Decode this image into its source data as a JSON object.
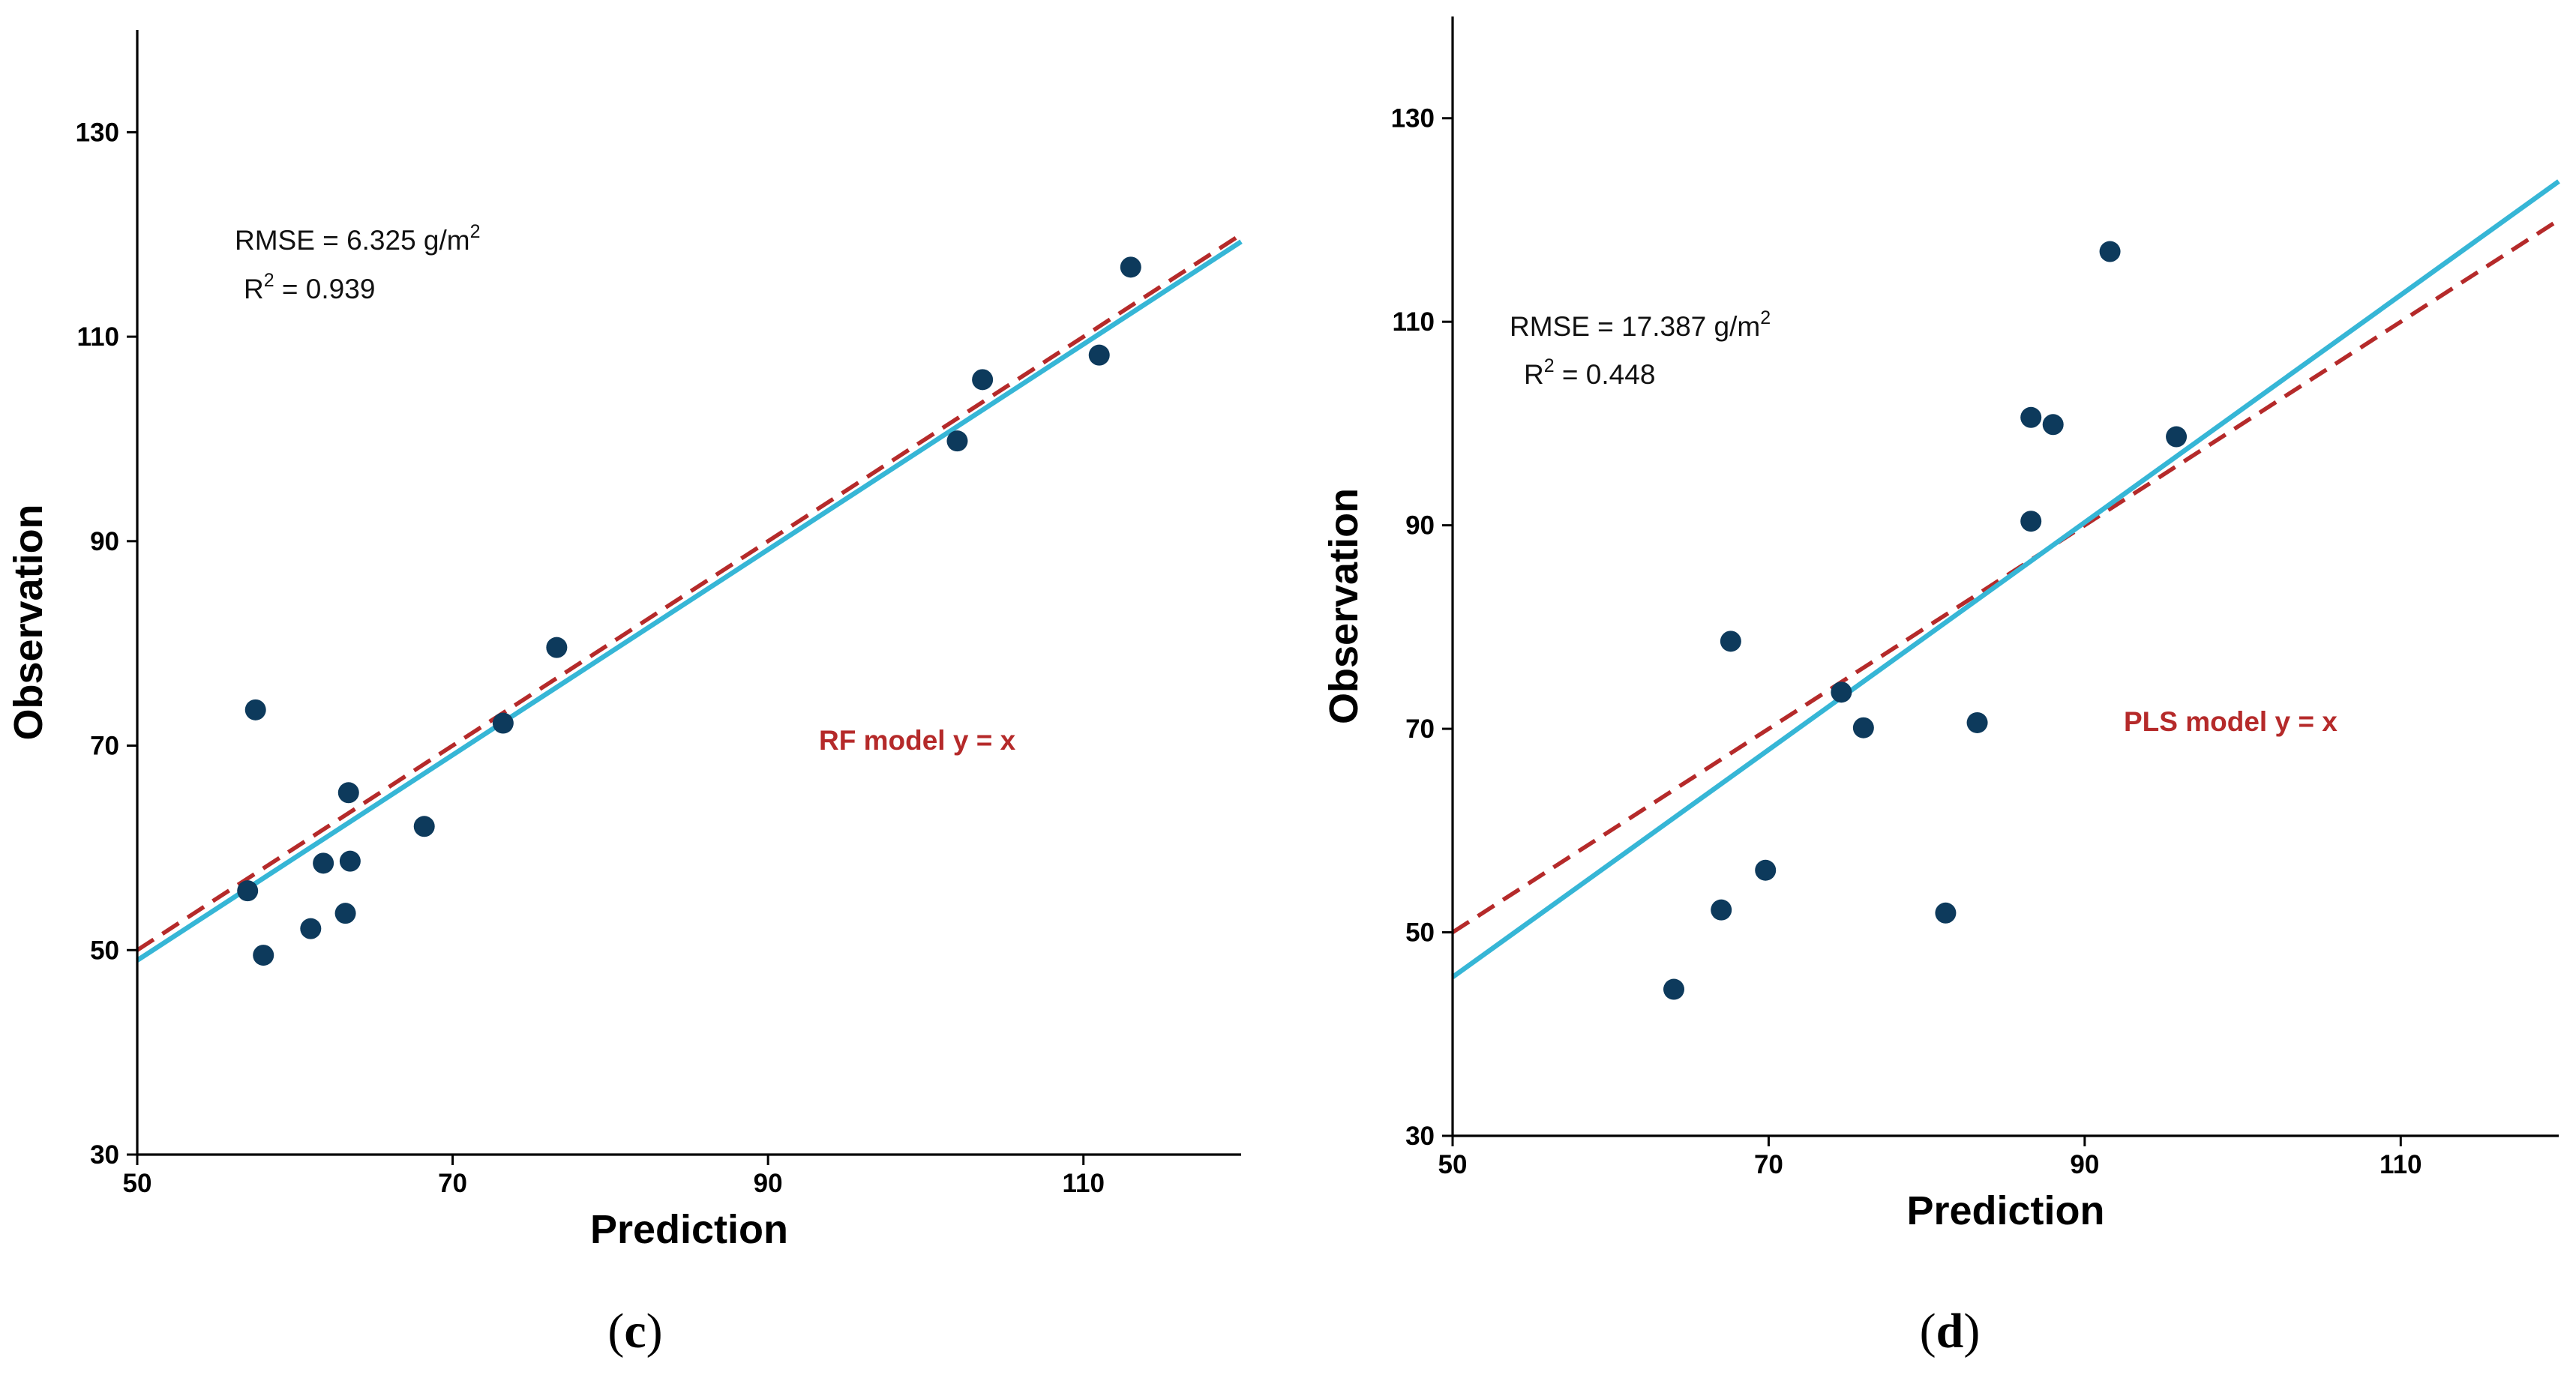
{
  "colors": {
    "point": "#0d3a5c",
    "fit_line": "#36b6d6",
    "identity_line": "#b52a2a",
    "model_label": "#b52a2a"
  },
  "chart_data": [
    {
      "type": "scatter",
      "panel_label": "(c)",
      "panel_open": "(",
      "panel_letter": "c",
      "panel_close": ")",
      "xlabel": "Prediction",
      "ylabel": "Observation",
      "xlim": [
        50,
        120
      ],
      "ylim": [
        30,
        140
      ],
      "xticks": [
        50,
        70,
        90,
        110
      ],
      "yticks": [
        30,
        50,
        70,
        90,
        110,
        130
      ],
      "grid": false,
      "annotations": {
        "rmse_text": "RMSE = 6.325 g/m",
        "rmse_sup": "2",
        "r2_text_pre": "R",
        "r2_sup": "2",
        "r2_text_post": " = 0.939",
        "model_label": "RF model y = x"
      },
      "points": [
        {
          "x": 57.0,
          "y": 55.8
        },
        {
          "x": 57.5,
          "y": 73.5
        },
        {
          "x": 58.0,
          "y": 49.5
        },
        {
          "x": 61.0,
          "y": 52.1
        },
        {
          "x": 61.8,
          "y": 58.5
        },
        {
          "x": 63.2,
          "y": 53.6
        },
        {
          "x": 63.4,
          "y": 65.4
        },
        {
          "x": 63.5,
          "y": 58.7
        },
        {
          "x": 68.2,
          "y": 62.1
        },
        {
          "x": 73.2,
          "y": 72.2
        },
        {
          "x": 76.6,
          "y": 79.6
        },
        {
          "x": 102.0,
          "y": 99.8
        },
        {
          "x": 103.6,
          "y": 105.8
        },
        {
          "x": 111.0,
          "y": 108.2
        },
        {
          "x": 113.0,
          "y": 116.8
        }
      ],
      "fit_line": {
        "x": [
          50,
          120
        ],
        "y": [
          49.0,
          119.3
        ]
      },
      "identity_line": {
        "x": [
          50,
          120
        ],
        "y": [
          50,
          120
        ]
      }
    },
    {
      "type": "scatter",
      "panel_label": "(d)",
      "panel_open": "(",
      "panel_letter": "d",
      "panel_close": ")",
      "xlabel": "Prediction",
      "ylabel": "Observation",
      "xlim": [
        50,
        120
      ],
      "ylim": [
        30,
        140
      ],
      "xticks": [
        50,
        70,
        90,
        110
      ],
      "yticks": [
        30,
        50,
        70,
        90,
        110,
        130
      ],
      "grid": false,
      "annotations": {
        "rmse_text": "RMSE = 17.387 g/m",
        "rmse_sup": "2",
        "r2_text_pre": "R",
        "r2_sup": "2",
        "r2_text_post": " = 0.448",
        "model_label": "PLS model y = x"
      },
      "points": [
        {
          "x": 64.0,
          "y": 44.4
        },
        {
          "x": 67.0,
          "y": 52.2
        },
        {
          "x": 67.6,
          "y": 78.6
        },
        {
          "x": 69.8,
          "y": 56.1
        },
        {
          "x": 74.6,
          "y": 73.6
        },
        {
          "x": 76.0,
          "y": 70.1
        },
        {
          "x": 81.2,
          "y": 51.9
        },
        {
          "x": 83.2,
          "y": 70.6
        },
        {
          "x": 86.6,
          "y": 100.6
        },
        {
          "x": 86.6,
          "y": 90.4
        },
        {
          "x": 88.0,
          "y": 99.9
        },
        {
          "x": 91.6,
          "y": 116.9
        },
        {
          "x": 95.8,
          "y": 98.7
        }
      ],
      "fit_line": {
        "x": [
          50,
          120
        ],
        "y": [
          45.6,
          123.8
        ]
      },
      "identity_line": {
        "x": [
          50,
          120
        ],
        "y": [
          50,
          120
        ]
      }
    }
  ]
}
